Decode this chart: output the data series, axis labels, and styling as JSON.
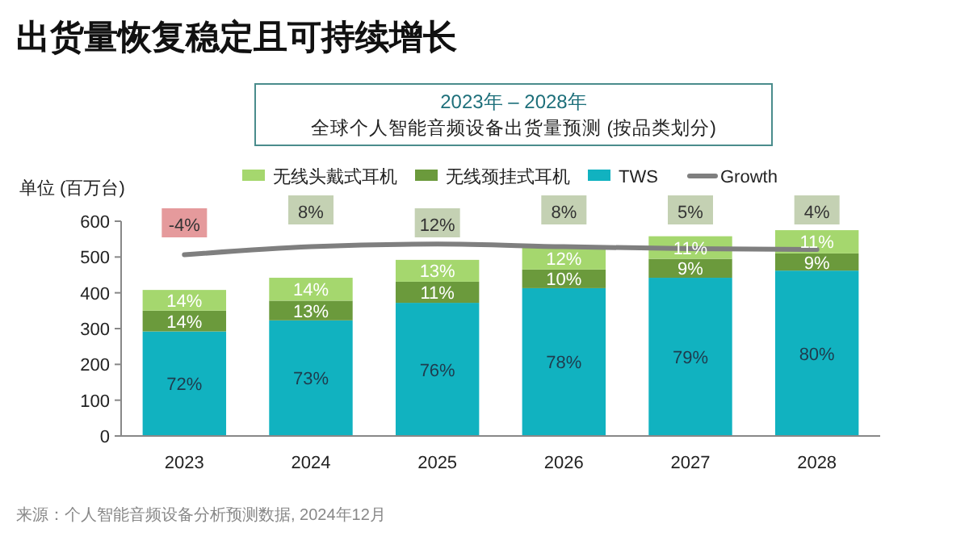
{
  "chart_data": {
    "type": "bar",
    "stacked": true,
    "title": "出货量恢复稳定且可持续增长",
    "subtitle": "2023年 – 2028年",
    "ylabel": "单位 (百万台)",
    "categories": [
      "2023",
      "2024",
      "2025",
      "2026",
      "2027",
      "2028"
    ],
    "series": [
      {
        "name": "TWS",
        "color": "#11b2c0",
        "values": [
          292,
          323,
          372,
          413,
          442,
          462
        ]
      },
      {
        "name": "无线颈挂式耳机",
        "color": "#6b9a3c",
        "values": [
          58,
          55,
          59,
          52,
          53,
          48
        ]
      },
      {
        "name": "无线头戴式耳机",
        "color": "#a5d76e",
        "values": [
          58,
          64,
          61,
          63,
          63,
          65
        ]
      },
      {
        "name": "Growth",
        "type": "line",
        "axis": "y2",
        "color": "#7f7f7f",
        "values": [
          -4,
          8,
          12,
          8,
          5,
          4
        ],
        "value_labels": [
          "-4%",
          "8%",
          "12%",
          "8%",
          "5%",
          "4%"
        ]
      }
    ],
    "ylim": [
      0,
      600
    ],
    "yticks": [
      0,
      100,
      200,
      300,
      400,
      500,
      600
    ],
    "y2lim": [
      -274,
      46
    ],
    "legend": "top",
    "annotations": [
      "全球个人智能音频设备出货量预测  (按品类划分)",
      "来源：个人智能音频设备分析预测数据, 2024年12月",
      "72%",
      "14%",
      "14%",
      "73%",
      "13%",
      "14%",
      "76%",
      "11%",
      "13%",
      "78%",
      "10%",
      "12%",
      "79%",
      "9%",
      "11%",
      "80%",
      "9%",
      "11%"
    ]
  }
}
